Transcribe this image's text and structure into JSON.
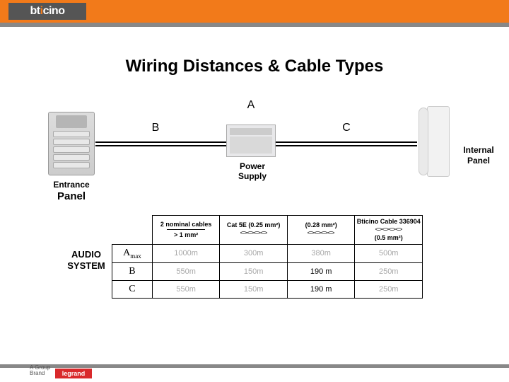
{
  "brand": {
    "logo": "bticino",
    "footer_group": "A Group",
    "footer_brand": "Brand",
    "footer_legrand": "legrand"
  },
  "title": "Wiring Distances & Cable Types",
  "segments": {
    "a": "A",
    "b": "B",
    "c": "C"
  },
  "labels": {
    "entrance_top": "Entrance",
    "entrance_bot": "Panel",
    "psu_top": "Power",
    "psu_bot": "Supply",
    "internal_top": "Internal",
    "internal_bot": "Panel",
    "audio_top": "AUDIO",
    "audio_bot": "SYSTEM"
  },
  "table": {
    "headers": [
      {
        "top": "2 nominal cables",
        "bot": "> 1 mm²",
        "twisted": false,
        "divider": true
      },
      {
        "top": "Cat 5E (0.25 mm²)",
        "bot": "",
        "twisted": true
      },
      {
        "top": "(0.28 mm²)",
        "bot": "",
        "twisted": true
      },
      {
        "top": "Bticino Cable 336904",
        "bot": "(0.5 mm²)",
        "twisted": true
      }
    ],
    "rows": [
      {
        "label_html": "A<sub>max</sub>",
        "cells": [
          {
            "v": "1000m",
            "gray": true
          },
          {
            "v": "300m",
            "gray": true
          },
          {
            "v": "380m",
            "gray": true
          },
          {
            "v": "500m",
            "gray": true
          }
        ]
      },
      {
        "label_html": "B",
        "cells": [
          {
            "v": "550m",
            "gray": true
          },
          {
            "v": "150m",
            "gray": true
          },
          {
            "v": "190 m",
            "gray": false
          },
          {
            "v": "250m",
            "gray": true
          }
        ]
      },
      {
        "label_html": "C",
        "cells": [
          {
            "v": "550m",
            "gray": true
          },
          {
            "v": "150m",
            "gray": true
          },
          {
            "v": "190 m",
            "gray": false
          },
          {
            "v": "250m",
            "gray": true
          }
        ]
      }
    ]
  },
  "colors": {
    "accent": "#f27a1a",
    "gray_bar": "#888888",
    "text": "#000000",
    "gray_text": "#a8a8a8",
    "legrand": "#d9292b"
  }
}
